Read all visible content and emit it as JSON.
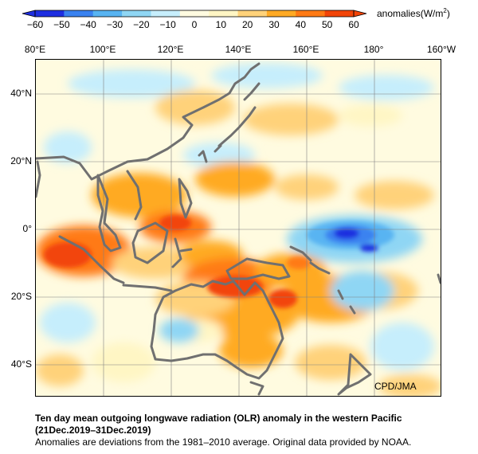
{
  "colorbar": {
    "ticks": [
      "−60",
      "−50",
      "−40",
      "−30",
      "−20",
      "−10",
      "0",
      "10",
      "20",
      "30",
      "40",
      "50",
      "60"
    ],
    "unit_label": "anomalies(W/m",
    "unit_sup": "2",
    "unit_close": ")",
    "colors": [
      "#1e2ee0",
      "#3a82f0",
      "#58b4f2",
      "#8fd6f4",
      "#c6eefc",
      "#fffbe0",
      "#fff6c4",
      "#ffd27a",
      "#ffaa24",
      "#ff7a14",
      "#f24408"
    ]
  },
  "axes": {
    "lon_labels": [
      "80°E",
      "100°E",
      "120°E",
      "140°E",
      "160°E",
      "180°",
      "160°W"
    ],
    "lat_labels": [
      "40°N",
      "20°N",
      "0°",
      "20°S",
      "40°S"
    ]
  },
  "credit": "CPD/JMA",
  "caption": {
    "title": "Ten day mean outgoing longwave radiation (OLR) anomaly in the western Pacific",
    "period": "(21Dec.2019–31Dec.2019)",
    "note": "Anomalies are deviations from the 1981–2010 average. Original data provided by NOAA."
  }
}
